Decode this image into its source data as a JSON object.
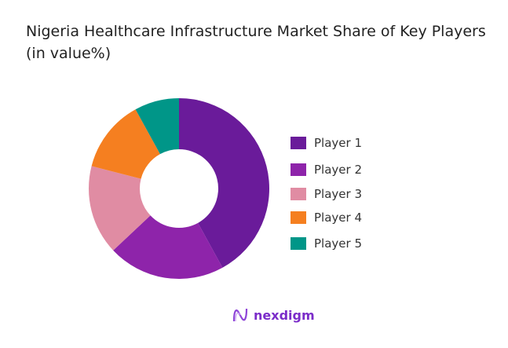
{
  "chart_data": {
    "type": "pie",
    "variant": "donut",
    "title": "Nigeria Healthcare Infrastructure Market Share of Key Players (in value%)",
    "categories": [
      "Player 1",
      "Player 2",
      "Player 3",
      "Player 4",
      "Player 5"
    ],
    "values": [
      42,
      21,
      16,
      13,
      8
    ],
    "colors": [
      "#6a1b9a",
      "#8e24aa",
      "#e08ca3",
      "#f57f20",
      "#009688"
    ],
    "legend_position": "right"
  },
  "brand": {
    "name": "nexdigm"
  }
}
